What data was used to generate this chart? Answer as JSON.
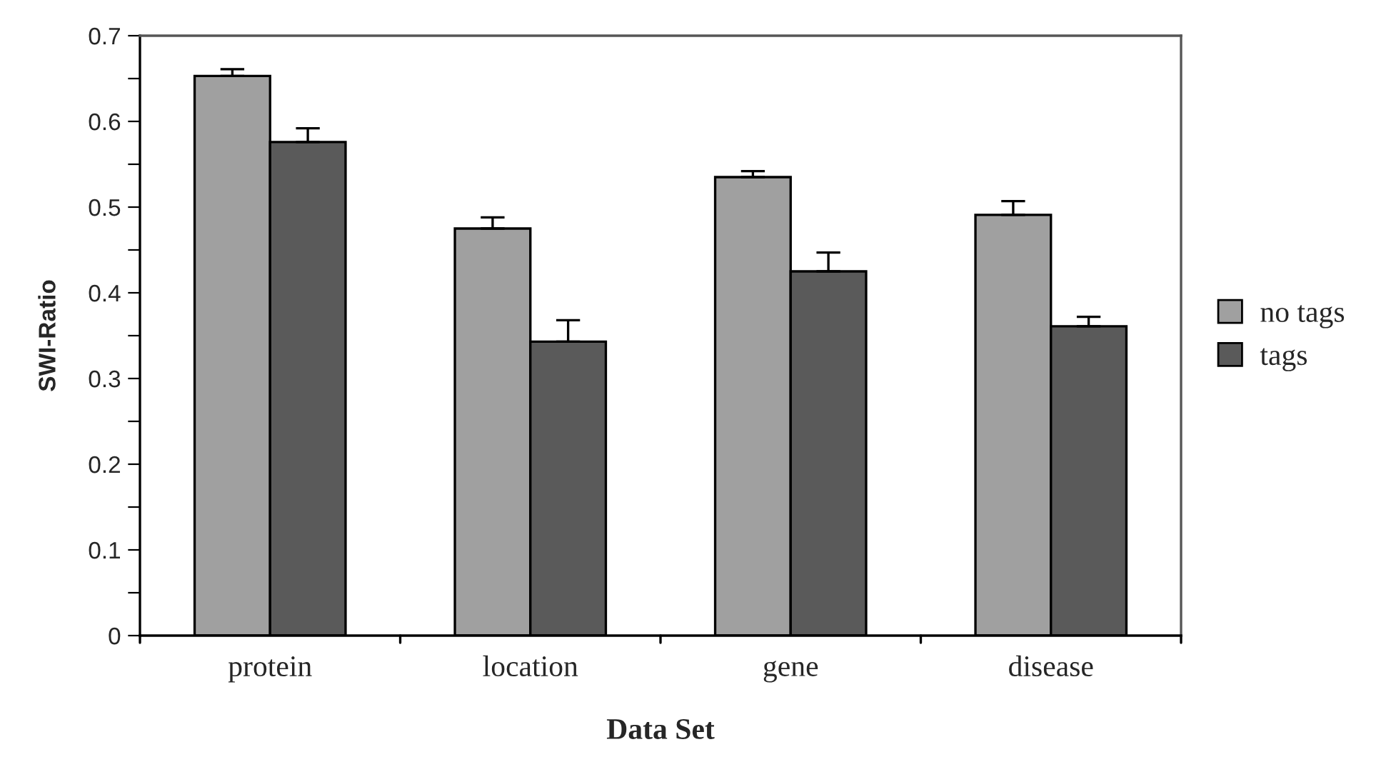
{
  "chart_data": {
    "type": "bar",
    "xlabel": "Data Set",
    "ylabel": "SWI-Ratio",
    "categories": [
      "protein",
      "location",
      "gene",
      "disease"
    ],
    "series": [
      {
        "name": "no tags",
        "color": "#a0a0a0",
        "values": [
          0.653,
          0.475,
          0.535,
          0.491
        ],
        "errors": [
          [
            0.653,
            0.661
          ],
          [
            0.475,
            0.488
          ],
          [
            0.535,
            0.542
          ],
          [
            0.491,
            0.507
          ]
        ]
      },
      {
        "name": "tags",
        "color": "#5a5a5a",
        "values": [
          0.576,
          0.343,
          0.425,
          0.361
        ],
        "errors": [
          [
            0.576,
            0.592
          ],
          [
            0.343,
            0.368
          ],
          [
            0.425,
            0.447
          ],
          [
            0.361,
            0.372
          ]
        ]
      }
    ],
    "ylim": [
      0,
      0.7
    ],
    "yticks": [
      0,
      {
        "value": 0.05,
        "label": null
      },
      0.1,
      {
        "value": 0.15,
        "label": null
      },
      0.2,
      {
        "value": 0.25,
        "label": null
      },
      0.3,
      {
        "value": 0.35,
        "label": null
      },
      0.4,
      {
        "value": 0.45,
        "label": null
      },
      0.5,
      {
        "value": 0.55,
        "label": null
      },
      0.6,
      {
        "value": 0.65,
        "label": null
      },
      0.7
    ],
    "grid": false,
    "legend": "right"
  }
}
